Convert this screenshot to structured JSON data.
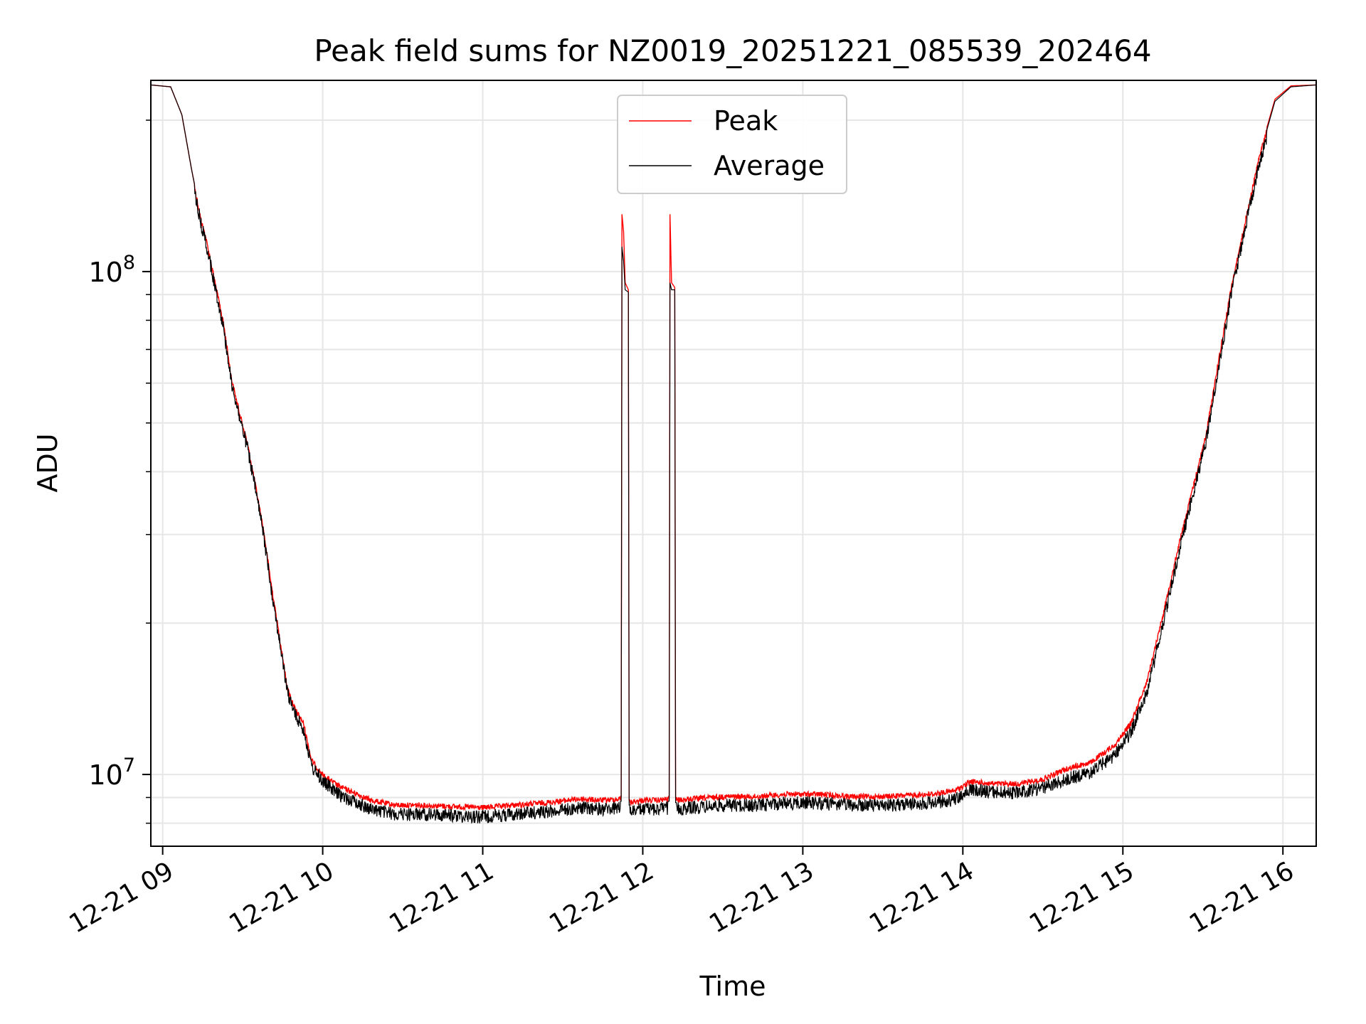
{
  "chart_data": {
    "type": "line",
    "title": "Peak field sums for NZ0019_20251221_085539_202464",
    "xlabel": "Time",
    "ylabel": "ADU",
    "xlim_hours": [
      8.926,
      16.208
    ],
    "ylim": [
      7200000,
      240000000
    ],
    "yscale": "log",
    "grid": true,
    "legend_position": "upper center",
    "x_ticks": [
      {
        "value": 9,
        "label": "12-21 09"
      },
      {
        "value": 10,
        "label": "12-21 10"
      },
      {
        "value": 11,
        "label": "12-21 11"
      },
      {
        "value": 12,
        "label": "12-21 12"
      },
      {
        "value": 13,
        "label": "12-21 13"
      },
      {
        "value": 14,
        "label": "12-21 14"
      },
      {
        "value": 15,
        "label": "12-21 15"
      },
      {
        "value": 16,
        "label": "12-21 16"
      }
    ],
    "y_ticks": [
      {
        "value": 10000000,
        "base": "10",
        "exp": "7"
      },
      {
        "value": 100000000,
        "base": "10",
        "exp": "8"
      }
    ],
    "series": [
      {
        "name": "Peak",
        "color": "#ff0000",
        "points": [
          [
            8.926,
            235000000
          ],
          [
            9.05,
            233000000
          ],
          [
            9.12,
            205000000
          ],
          [
            9.18,
            160000000
          ],
          [
            9.24,
            128000000
          ],
          [
            9.27,
            118000000
          ],
          [
            9.3,
            106000000
          ],
          [
            9.34,
            92000000
          ],
          [
            9.38,
            80000000
          ],
          [
            9.43,
            62000000
          ],
          [
            9.48,
            53000000
          ],
          [
            9.53,
            46000000
          ],
          [
            9.58,
            38000000
          ],
          [
            9.63,
            31000000
          ],
          [
            9.68,
            24000000
          ],
          [
            9.73,
            19000000
          ],
          [
            9.78,
            15000000
          ],
          [
            9.83,
            13600000
          ],
          [
            9.88,
            12800000
          ],
          [
            9.93,
            10800000
          ],
          [
            10.0,
            10100000
          ],
          [
            10.1,
            9600000
          ],
          [
            10.2,
            9300000
          ],
          [
            10.3,
            9000000
          ],
          [
            10.45,
            8800000
          ],
          [
            10.6,
            8800000
          ],
          [
            10.8,
            8750000
          ],
          [
            11.0,
            8700000
          ],
          [
            11.2,
            8800000
          ],
          [
            11.4,
            8900000
          ],
          [
            11.6,
            9050000
          ],
          [
            11.75,
            9000000
          ],
          [
            11.865,
            9050000
          ],
          [
            11.87,
            130000000
          ],
          [
            11.88,
            120000000
          ],
          [
            11.89,
            95000000
          ],
          [
            11.91,
            92000000
          ],
          [
            11.915,
            8900000
          ],
          [
            12.0,
            9000000
          ],
          [
            12.1,
            9000000
          ],
          [
            12.165,
            9050000
          ],
          [
            12.17,
            130000000
          ],
          [
            12.18,
            95000000
          ],
          [
            12.2,
            93000000
          ],
          [
            12.205,
            9000000
          ],
          [
            12.3,
            9050000
          ],
          [
            12.5,
            9150000
          ],
          [
            12.7,
            9150000
          ],
          [
            12.9,
            9250000
          ],
          [
            13.1,
            9250000
          ],
          [
            13.3,
            9150000
          ],
          [
            13.5,
            9150000
          ],
          [
            13.8,
            9250000
          ],
          [
            13.95,
            9400000
          ],
          [
            14.05,
            9800000
          ],
          [
            14.2,
            9700000
          ],
          [
            14.35,
            9700000
          ],
          [
            14.5,
            9900000
          ],
          [
            14.65,
            10400000
          ],
          [
            14.8,
            10700000
          ],
          [
            14.95,
            11600000
          ],
          [
            15.05,
            12800000
          ],
          [
            15.15,
            15500000
          ],
          [
            15.25,
            21000000
          ],
          [
            15.35,
            29000000
          ],
          [
            15.45,
            39000000
          ],
          [
            15.52,
            48000000
          ],
          [
            15.6,
            68000000
          ],
          [
            15.68,
            95000000
          ],
          [
            15.76,
            125000000
          ],
          [
            15.85,
            170000000
          ],
          [
            15.95,
            220000000
          ],
          [
            16.05,
            234000000
          ],
          [
            16.208,
            235000000
          ]
        ]
      },
      {
        "name": "Average",
        "color": "#000000",
        "points": [
          [
            8.926,
            235000000
          ],
          [
            9.05,
            233000000
          ],
          [
            9.12,
            205000000
          ],
          [
            9.18,
            160000000
          ],
          [
            9.24,
            128000000
          ],
          [
            9.27,
            118000000
          ],
          [
            9.3,
            106000000
          ],
          [
            9.34,
            92000000
          ],
          [
            9.38,
            80000000
          ],
          [
            9.43,
            62000000
          ],
          [
            9.48,
            53000000
          ],
          [
            9.53,
            46000000
          ],
          [
            9.58,
            38000000
          ],
          [
            9.63,
            31000000
          ],
          [
            9.68,
            24000000
          ],
          [
            9.73,
            19000000
          ],
          [
            9.78,
            15000000
          ],
          [
            9.83,
            13500000
          ],
          [
            9.88,
            12700000
          ],
          [
            9.93,
            10700000
          ],
          [
            10.0,
            10000000
          ],
          [
            10.1,
            9400000
          ],
          [
            10.2,
            9100000
          ],
          [
            10.3,
            8800000
          ],
          [
            10.45,
            8600000
          ],
          [
            10.6,
            8600000
          ],
          [
            10.8,
            8550000
          ],
          [
            11.0,
            8500000
          ],
          [
            11.2,
            8600000
          ],
          [
            11.4,
            8700000
          ],
          [
            11.6,
            8850000
          ],
          [
            11.75,
            8800000
          ],
          [
            11.865,
            8850000
          ],
          [
            11.87,
            112000000
          ],
          [
            11.88,
            105000000
          ],
          [
            11.89,
            92000000
          ],
          [
            11.91,
            91000000
          ],
          [
            11.915,
            8700000
          ],
          [
            12.0,
            8800000
          ],
          [
            12.1,
            8800000
          ],
          [
            12.165,
            8850000
          ],
          [
            12.17,
            95000000
          ],
          [
            12.18,
            92000000
          ],
          [
            12.2,
            92000000
          ],
          [
            12.205,
            8800000
          ],
          [
            12.3,
            8850000
          ],
          [
            12.5,
            8950000
          ],
          [
            12.7,
            8950000
          ],
          [
            12.9,
            9050000
          ],
          [
            13.1,
            9050000
          ],
          [
            13.3,
            8950000
          ],
          [
            13.5,
            8950000
          ],
          [
            13.8,
            9050000
          ],
          [
            13.95,
            9200000
          ],
          [
            14.05,
            9600000
          ],
          [
            14.2,
            9500000
          ],
          [
            14.35,
            9500000
          ],
          [
            14.5,
            9700000
          ],
          [
            14.65,
            10100000
          ],
          [
            14.8,
            10400000
          ],
          [
            14.95,
            11300000
          ],
          [
            15.05,
            12500000
          ],
          [
            15.15,
            15000000
          ],
          [
            15.25,
            20500000
          ],
          [
            15.35,
            28500000
          ],
          [
            15.45,
            38500000
          ],
          [
            15.52,
            47500000
          ],
          [
            15.6,
            67000000
          ],
          [
            15.68,
            94000000
          ],
          [
            15.76,
            124000000
          ],
          [
            15.85,
            168000000
          ],
          [
            15.95,
            218000000
          ],
          [
            16.05,
            233000000
          ],
          [
            16.208,
            235000000
          ]
        ]
      }
    ]
  }
}
